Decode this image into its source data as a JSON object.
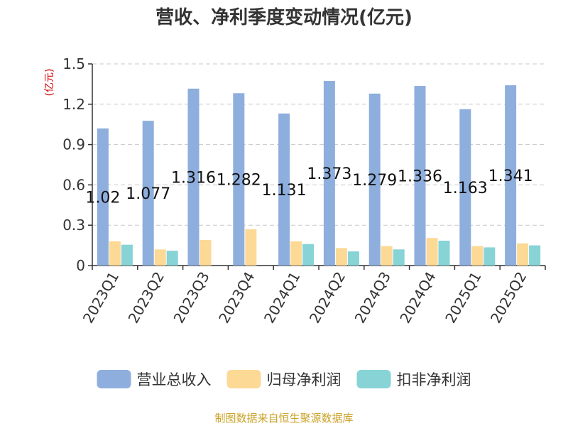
{
  "chart_data": {
    "type": "bar",
    "title": "营收、净利季度变动情况(亿元)",
    "ylabel": "(亿元)",
    "ylim": [
      0,
      1.5
    ],
    "yticks": [
      "0",
      "0.3",
      "0.6",
      "0.9",
      "1.2",
      "1.5"
    ],
    "grid": true,
    "legend_position": "bottom",
    "categories": [
      "2023Q1",
      "2023Q2",
      "2023Q3",
      "2023Q4",
      "2024Q1",
      "2024Q2",
      "2024Q3",
      "2024Q4",
      "2025Q1",
      "2025Q2"
    ],
    "series": [
      {
        "name": "营业总收入",
        "color": "#8eaedd",
        "values": [
          1.02,
          1.077,
          1.316,
          1.282,
          1.131,
          1.373,
          1.279,
          1.336,
          1.163,
          1.341
        ],
        "labels": [
          "1.02",
          "1.077",
          "1.316",
          "1.282",
          "1.131",
          "1.373",
          "1.279",
          "1.336",
          "1.163",
          "1.341"
        ]
      },
      {
        "name": "归母净利润",
        "color": "#fdd996",
        "values": [
          0.18,
          0.12,
          0.19,
          0.27,
          0.18,
          0.13,
          0.145,
          0.205,
          0.145,
          0.165
        ]
      },
      {
        "name": "扣非净利润",
        "color": "#87d3d6",
        "values": [
          0.155,
          0.11,
          null,
          null,
          0.16,
          0.105,
          0.12,
          0.185,
          0.135,
          0.15
        ]
      }
    ]
  },
  "source_text": "制图数据来自恒生聚源数据库"
}
